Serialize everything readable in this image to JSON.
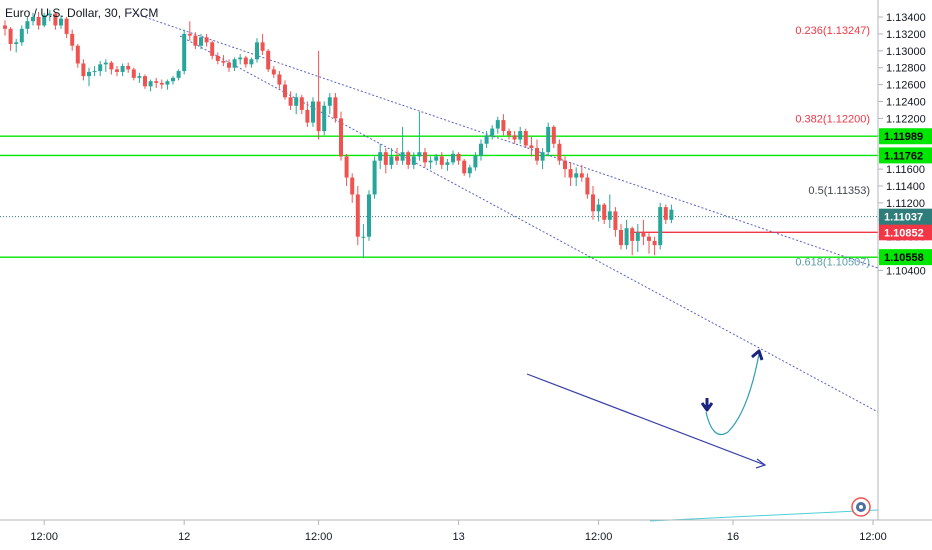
{
  "header": {
    "symbol_title": "Euro / U.S. Dollar, 30, FXCM"
  },
  "chart_data": {
    "type": "candlestick",
    "y_ticks": [
      "1.13400",
      "1.13200",
      "1.13000",
      "1.12800",
      "1.12600",
      "1.12400",
      "1.12200",
      "1.12000",
      "1.11800",
      "1.11600",
      "1.11400",
      "1.11200",
      "1.11000",
      "1.10800",
      "1.10600",
      "1.10400"
    ],
    "x_ticks": [
      {
        "label": "12:00",
        "slot": 7
      },
      {
        "label": "12",
        "slot": 32
      },
      {
        "label": "12:00",
        "slot": 56
      },
      {
        "label": "13",
        "slot": 81
      },
      {
        "label": "12:00",
        "slot": 106
      },
      {
        "label": "16",
        "slot": 130
      },
      {
        "label": "12:00",
        "slot": 155
      }
    ],
    "ylim": [
      1.1033,
      1.1347
    ],
    "fib_levels": [
      {
        "label": "0.236(1.13247)",
        "value": 1.13247,
        "color": "#f23645"
      },
      {
        "label": "0.382(1.12200)",
        "value": 1.122,
        "color": "#f23645"
      },
      {
        "label": "0.5(1.11353)",
        "value": 1.11353,
        "color": "#434651"
      },
      {
        "label": "0.618(1.10507)",
        "value": 1.10507,
        "color": "#5b9ea6"
      }
    ],
    "horizontal_lines": [
      {
        "value": 1.11989,
        "label": "1.11989",
        "color": "#00e600"
      },
      {
        "value": 1.11762,
        "label": "1.11762",
        "color": "#00e600"
      },
      {
        "value": 1.10558,
        "label": "1.10558",
        "color": "#00e600"
      },
      {
        "value": 1.10852,
        "label": "1.10852",
        "color": "#f23645"
      }
    ],
    "current_price": {
      "value": 1.11037,
      "label": "1.11037",
      "color": "#2e7d7a"
    },
    "colors": {
      "up": "#26a69a",
      "down": "#ef5350",
      "trendline": "#5a62c7"
    },
    "candles": [
      [
        1.133,
        1.1336,
        1.1318,
        1.1326
      ],
      [
        1.1326,
        1.1328,
        1.13,
        1.1308
      ],
      [
        1.1308,
        1.1314,
        1.1298,
        1.131
      ],
      [
        1.131,
        1.133,
        1.1306,
        1.1326
      ],
      [
        1.1326,
        1.134,
        1.132,
        1.1335
      ],
      [
        1.1335,
        1.1345,
        1.133,
        1.134
      ],
      [
        1.134,
        1.1346,
        1.1325,
        1.133
      ],
      [
        1.133,
        1.1345,
        1.1328,
        1.1342
      ],
      [
        1.1342,
        1.1348,
        1.1335,
        1.1344
      ],
      [
        1.1344,
        1.1346,
        1.1325,
        1.133
      ],
      [
        1.133,
        1.1342,
        1.1326,
        1.1338
      ],
      [
        1.1338,
        1.134,
        1.1315,
        1.132
      ],
      [
        1.132,
        1.1325,
        1.13,
        1.1306
      ],
      [
        1.1306,
        1.1308,
        1.128,
        1.1285
      ],
      [
        1.1285,
        1.129,
        1.1265,
        1.127
      ],
      [
        1.127,
        1.128,
        1.1258,
        1.1275
      ],
      [
        1.1275,
        1.1282,
        1.127,
        1.1276
      ],
      [
        1.1276,
        1.1288,
        1.127,
        1.1284
      ],
      [
        1.1284,
        1.129,
        1.1275,
        1.1286
      ],
      [
        1.1286,
        1.1288,
        1.1272,
        1.1278
      ],
      [
        1.1278,
        1.1282,
        1.127,
        1.1275
      ],
      [
        1.1275,
        1.1285,
        1.127,
        1.1282
      ],
      [
        1.1282,
        1.1286,
        1.1274,
        1.1278
      ],
      [
        1.1278,
        1.128,
        1.1265,
        1.1268
      ],
      [
        1.1268,
        1.1274,
        1.1262,
        1.127
      ],
      [
        1.127,
        1.1272,
        1.1255,
        1.1258
      ],
      [
        1.1258,
        1.1266,
        1.1252,
        1.1264
      ],
      [
        1.1264,
        1.1268,
        1.1256,
        1.1262
      ],
      [
        1.1262,
        1.1266,
        1.1255,
        1.126
      ],
      [
        1.126,
        1.1266,
        1.1254,
        1.1264
      ],
      [
        1.1264,
        1.127,
        1.126,
        1.1268
      ],
      [
        1.1268,
        1.1278,
        1.1265,
        1.1276
      ],
      [
        1.1276,
        1.1325,
        1.1272,
        1.132
      ],
      [
        1.132,
        1.1335,
        1.1312,
        1.1318
      ],
      [
        1.1318,
        1.1322,
        1.1302,
        1.1306
      ],
      [
        1.1306,
        1.132,
        1.1302,
        1.1316
      ],
      [
        1.1316,
        1.132,
        1.1305,
        1.131
      ],
      [
        1.131,
        1.1312,
        1.129,
        1.1294
      ],
      [
        1.1294,
        1.1298,
        1.1284,
        1.1288
      ],
      [
        1.1288,
        1.1295,
        1.1282,
        1.1286
      ],
      [
        1.1286,
        1.129,
        1.1275,
        1.128
      ],
      [
        1.128,
        1.1292,
        1.1276,
        1.129
      ],
      [
        1.129,
        1.1296,
        1.1284,
        1.1292
      ],
      [
        1.1292,
        1.1294,
        1.128,
        1.1284
      ],
      [
        1.1284,
        1.1292,
        1.128,
        1.129
      ],
      [
        1.129,
        1.1315,
        1.1286,
        1.131
      ],
      [
        1.131,
        1.132,
        1.1295,
        1.13
      ],
      [
        1.13,
        1.1302,
        1.1275,
        1.1278
      ],
      [
        1.1278,
        1.1282,
        1.1268,
        1.1272
      ],
      [
        1.1272,
        1.1276,
        1.1255,
        1.126
      ],
      [
        1.126,
        1.1265,
        1.1242,
        1.1245
      ],
      [
        1.1245,
        1.1252,
        1.123,
        1.1235
      ],
      [
        1.1235,
        1.125,
        1.1225,
        1.1245
      ],
      [
        1.1245,
        1.1248,
        1.1225,
        1.123
      ],
      [
        1.123,
        1.124,
        1.121,
        1.1215
      ],
      [
        1.1215,
        1.1245,
        1.121,
        1.124
      ],
      [
        1.124,
        1.13,
        1.1195,
        1.1205
      ],
      [
        1.1205,
        1.124,
        1.12,
        1.1235
      ],
      [
        1.1235,
        1.125,
        1.1225,
        1.1245
      ],
      [
        1.1245,
        1.125,
        1.1215,
        1.122
      ],
      [
        1.122,
        1.1228,
        1.117,
        1.1175
      ],
      [
        1.1175,
        1.1178,
        1.114,
        1.115
      ],
      [
        1.115,
        1.1155,
        1.112,
        1.113
      ],
      [
        1.113,
        1.114,
        1.107,
        1.108
      ],
      [
        1.108,
        1.1095,
        1.1055,
        1.108
      ],
      [
        1.108,
        1.1135,
        1.1075,
        1.113
      ],
      [
        1.113,
        1.1175,
        1.1125,
        1.117
      ],
      [
        1.117,
        1.119,
        1.116,
        1.118
      ],
      [
        1.118,
        1.1185,
        1.1155,
        1.1165
      ],
      [
        1.1165,
        1.1185,
        1.116,
        1.1175
      ],
      [
        1.1175,
        1.1185,
        1.1165,
        1.117
      ],
      [
        1.117,
        1.121,
        1.1165,
        1.118
      ],
      [
        1.118,
        1.1182,
        1.116,
        1.1165
      ],
      [
        1.1165,
        1.118,
        1.116,
        1.1175
      ],
      [
        1.1175,
        1.1228,
        1.117,
        1.118
      ],
      [
        1.118,
        1.1185,
        1.1162,
        1.1168
      ],
      [
        1.1168,
        1.1175,
        1.116,
        1.117
      ],
      [
        1.117,
        1.1178,
        1.1165,
        1.1175
      ],
      [
        1.1175,
        1.118,
        1.116,
        1.1165
      ],
      [
        1.1165,
        1.1172,
        1.1158,
        1.1168
      ],
      [
        1.1168,
        1.1182,
        1.1165,
        1.1178
      ],
      [
        1.1178,
        1.118,
        1.1165,
        1.117
      ],
      [
        1.117,
        1.1172,
        1.1152,
        1.1155
      ],
      [
        1.1155,
        1.1165,
        1.115,
        1.1162
      ],
      [
        1.1162,
        1.118,
        1.1158,
        1.1176
      ],
      [
        1.1176,
        1.1195,
        1.117,
        1.119
      ],
      [
        1.119,
        1.1205,
        1.1185,
        1.12
      ],
      [
        1.12,
        1.1212,
        1.1195,
        1.1208
      ],
      [
        1.1208,
        1.1222,
        1.1202,
        1.1218
      ],
      [
        1.1218,
        1.1225,
        1.12,
        1.1205
      ],
      [
        1.1205,
        1.1208,
        1.1195,
        1.12
      ],
      [
        1.12,
        1.1205,
        1.119,
        1.1195
      ],
      [
        1.1195,
        1.121,
        1.119,
        1.1205
      ],
      [
        1.1205,
        1.1208,
        1.1185,
        1.1188
      ],
      [
        1.1188,
        1.1198,
        1.1175,
        1.1185
      ],
      [
        1.1185,
        1.1195,
        1.1165,
        1.117
      ],
      [
        1.117,
        1.1185,
        1.116,
        1.118
      ],
      [
        1.118,
        1.1215,
        1.1175,
        1.121
      ],
      [
        1.121,
        1.1212,
        1.1185,
        1.119
      ],
      [
        1.119,
        1.1195,
        1.1165,
        1.117
      ],
      [
        1.117,
        1.1175,
        1.115,
        1.116
      ],
      [
        1.116,
        1.1168,
        1.114,
        1.115
      ],
      [
        1.115,
        1.1162,
        1.114,
        1.1155
      ],
      [
        1.1155,
        1.1165,
        1.1145,
        1.115
      ],
      [
        1.115,
        1.1155,
        1.1125,
        1.113
      ],
      [
        1.113,
        1.114,
        1.11,
        1.111
      ],
      [
        1.111,
        1.1125,
        1.1098,
        1.1118
      ],
      [
        1.1118,
        1.112,
        1.1095,
        1.11
      ],
      [
        1.11,
        1.113,
        1.109,
        1.111
      ],
      [
        1.111,
        1.1115,
        1.108,
        1.1088
      ],
      [
        1.1088,
        1.1095,
        1.1065,
        1.107
      ],
      [
        1.107,
        1.11,
        1.1065,
        1.109
      ],
      [
        1.109,
        1.1092,
        1.1058,
        1.1075
      ],
      [
        1.1075,
        1.1095,
        1.1062,
        1.1085
      ],
      [
        1.1085,
        1.11,
        1.107,
        1.108
      ],
      [
        1.108,
        1.1085,
        1.106,
        1.1075
      ],
      [
        1.1075,
        1.108,
        1.1058,
        1.107
      ],
      [
        1.107,
        1.112,
        1.1065,
        1.1115
      ],
      [
        1.1115,
        1.1118,
        1.1095,
        1.11
      ],
      [
        1.11,
        1.1118,
        1.1096,
        1.1112
      ]
    ]
  }
}
